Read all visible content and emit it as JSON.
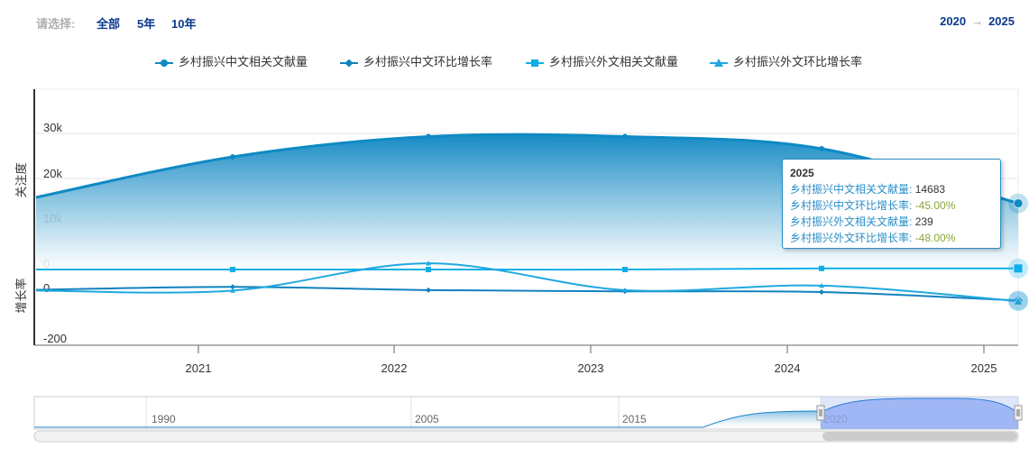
{
  "filter": {
    "label": "请选择:",
    "options": [
      "全部",
      "5年",
      "10年"
    ]
  },
  "year_range": {
    "from": "2020",
    "arrow": "→",
    "to": "2025"
  },
  "colors": {
    "s1": "#0e8ac4",
    "s2": "#1282be",
    "s3": "#10aee8",
    "s4": "#20a8e0",
    "axis": "#333333",
    "grid": "#e6e6e6"
  },
  "chart_data": {
    "type": "area",
    "x": [
      "2020",
      "2021",
      "2022",
      "2023",
      "2024",
      "2025"
    ],
    "xticks": [
      "2021",
      "2022",
      "2023",
      "2024",
      "2025"
    ],
    "series": [
      {
        "name": "乡村振兴中文相关文献量",
        "axis": "关注度",
        "type": "area",
        "values": [
          16000,
          25000,
          29500,
          29500,
          26800,
          14683
        ]
      },
      {
        "name": "乡村振兴中文环比增长率",
        "axis": "增长率",
        "type": "line",
        "values": [
          -2,
          10,
          -3,
          -8,
          -11,
          -45.0
        ]
      },
      {
        "name": "乡村振兴外文相关文献量",
        "axis": "关注度",
        "type": "line",
        "values": [
          0,
          0,
          0,
          0,
          239,
          239
        ]
      },
      {
        "name": "乡村振兴外文环比增长率",
        "axis": "增长率",
        "type": "line",
        "values": [
          -5,
          -5,
          105,
          -3,
          15,
          -48.0
        ]
      }
    ],
    "y1": {
      "label": "关注度",
      "ticks": [
        "10k",
        "20k",
        "30k",
        "0"
      ],
      "range": [
        0,
        30000
      ]
    },
    "y2": {
      "label": "增长率",
      "ticks": [
        "0",
        "-200"
      ],
      "range": [
        -200,
        200
      ]
    },
    "grid": true,
    "legend_position": "top-center"
  },
  "tooltip": {
    "title": "2025",
    "rows": [
      {
        "label": "乡村振兴中文相关文献量:",
        "value": "14683"
      },
      {
        "label": "乡村振兴中文环比增长率:",
        "value": "-45.00%"
      },
      {
        "label": "乡村振兴外文相关文献量:",
        "value": "239"
      },
      {
        "label": "乡村振兴外文环比增长率:",
        "value": "-48.00%"
      }
    ]
  },
  "navigator": {
    "labels": [
      "1990",
      "2005",
      "2015",
      "2020"
    ]
  }
}
